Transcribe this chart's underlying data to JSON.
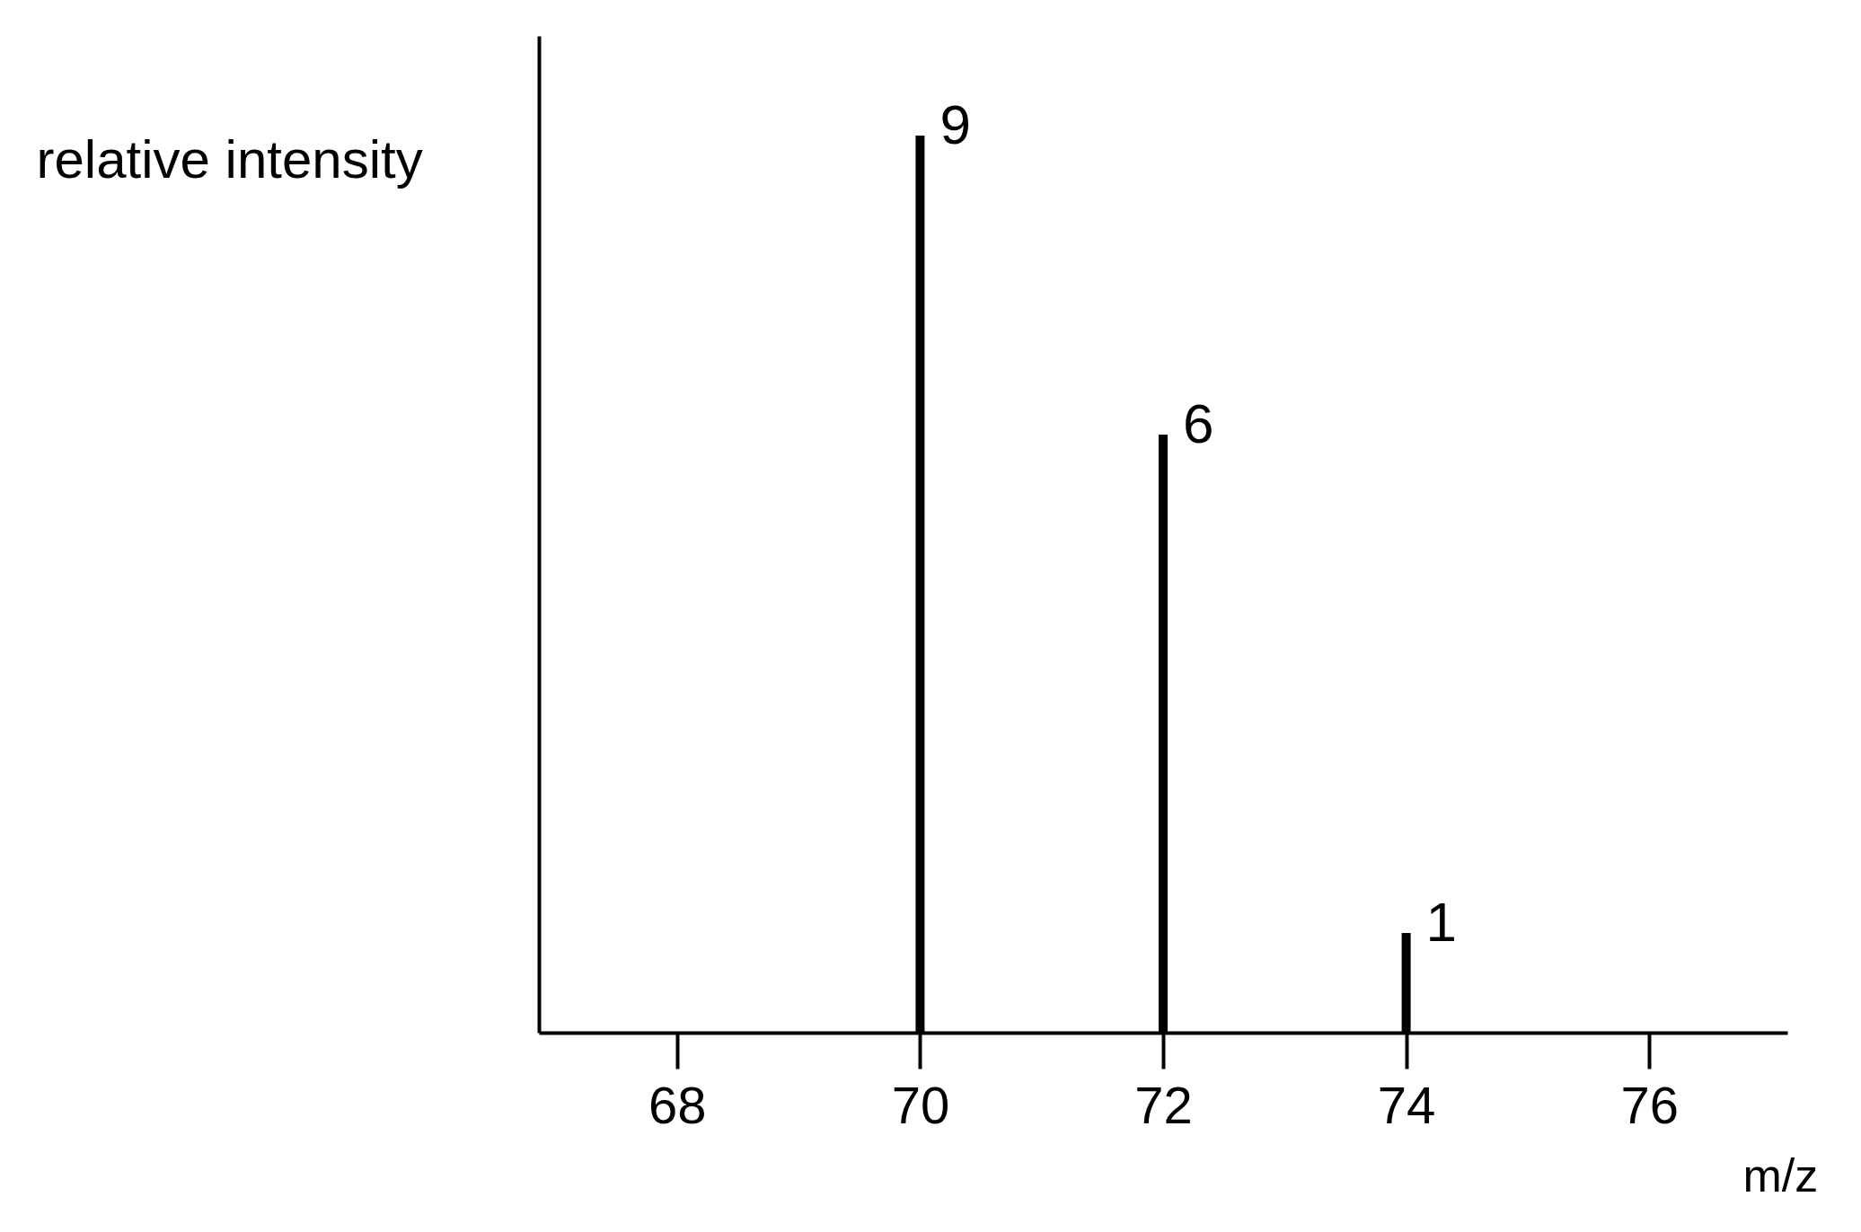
{
  "chart_data": {
    "type": "bar",
    "xlabel": "m/z",
    "ylabel": "relative intensity",
    "x": [
      70,
      72,
      74
    ],
    "values": [
      9,
      6,
      1
    ],
    "color": "#000000",
    "xlim": [
      66.9,
      77.1
    ],
    "ylim": [
      0,
      10
    ],
    "xticks": [
      68,
      70,
      72,
      74,
      76
    ],
    "tick_labels": "x",
    "data_labels": true,
    "grid": false
  }
}
